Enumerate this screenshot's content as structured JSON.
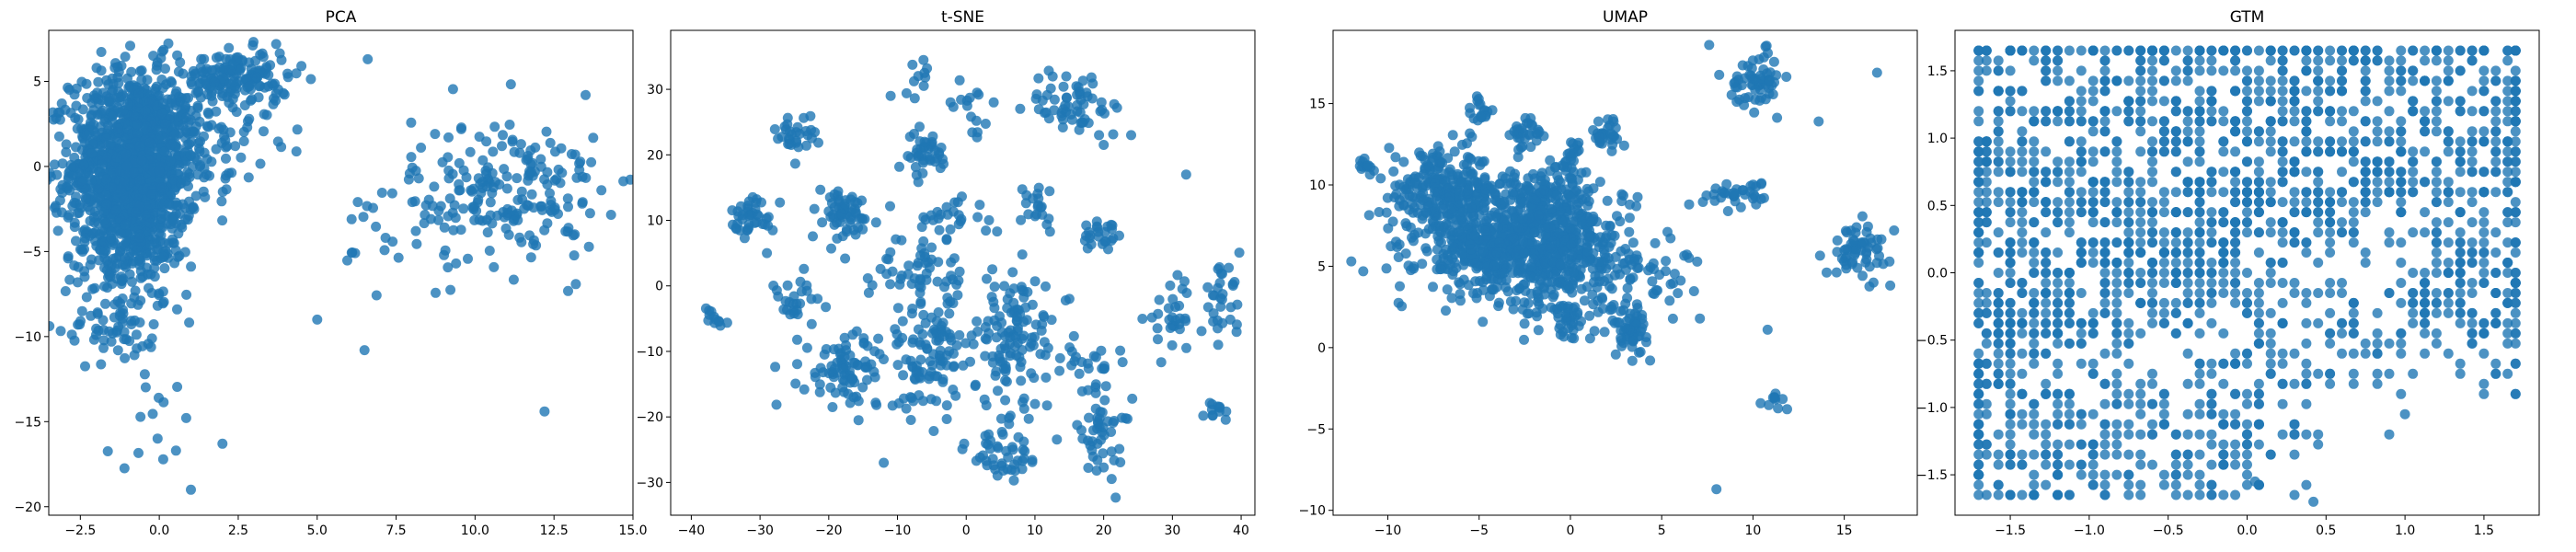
{
  "chart_data": [
    {
      "type": "scatter",
      "title": "PCA",
      "xlabel": "",
      "ylabel": "",
      "xlim": [
        -3.5,
        15
      ],
      "ylim": [
        -20.5,
        8
      ],
      "xticks": [
        -2.5,
        0.0,
        2.5,
        5.0,
        7.5,
        10.0,
        12.5,
        15.0
      ],
      "xtick_labels": [
        "−2.5",
        "0.0",
        "2.5",
        "5.0",
        "7.5",
        "10.0",
        "12.5",
        "15.0"
      ],
      "yticks": [
        -20,
        -15,
        -10,
        -5,
        0,
        5
      ],
      "ytick_labels": [
        "−20",
        "−15",
        "−10",
        "−5",
        "0",
        "5"
      ],
      "clusters": [
        {
          "cx": -0.8,
          "cy": 0.0,
          "sx": 1.0,
          "sy": 2.8,
          "n": 1300
        },
        {
          "cx": -1.2,
          "cy": -5.0,
          "sx": 0.9,
          "sy": 2.0,
          "n": 140
        },
        {
          "cx": -1.3,
          "cy": -9.5,
          "sx": 0.9,
          "sy": 1.2,
          "n": 50
        },
        {
          "cx": 2.5,
          "cy": 5.2,
          "sx": 0.8,
          "sy": 0.8,
          "n": 150
        },
        {
          "cx": 1.3,
          "cy": 2.2,
          "sx": 1.2,
          "sy": 1.5,
          "n": 90
        },
        {
          "cx": 11.0,
          "cy": -1.5,
          "sx": 1.5,
          "sy": 2.2,
          "n": 200
        },
        {
          "cx": 7.5,
          "cy": -3.5,
          "sx": 1.0,
          "sy": 2.0,
          "n": 25
        },
        {
          "cx": 0.0,
          "cy": -15.5,
          "sx": 0.7,
          "sy": 1.5,
          "n": 12
        }
      ],
      "points": [
        {
          "x": 1.0,
          "y": -19.0
        },
        {
          "x": 2.0,
          "y": -16.3
        },
        {
          "x": 6.5,
          "y": -10.8
        },
        {
          "x": 6.6,
          "y": 6.3
        },
        {
          "x": 12.2,
          "y": -14.4
        },
        {
          "x": 13.5,
          "y": 4.2
        },
        {
          "x": 14.0,
          "y": -1.4
        },
        {
          "x": 5.0,
          "y": -9.0
        },
        {
          "x": 4.5,
          "y": 5.9
        }
      ]
    },
    {
      "type": "scatter",
      "title": "t-SNE",
      "xlabel": "",
      "ylabel": "",
      "xlim": [
        -43,
        42
      ],
      "ylim": [
        -35,
        39
      ],
      "xticks": [
        -40,
        -30,
        -20,
        -10,
        0,
        10,
        20,
        30,
        40
      ],
      "xtick_labels": [
        "−40",
        "−30",
        "−20",
        "−10",
        "0",
        "10",
        "20",
        "30",
        "40"
      ],
      "yticks": [
        -30,
        -20,
        -10,
        0,
        10,
        20,
        30
      ],
      "ytick_labels": [
        "−30",
        "−20",
        "−10",
        "0",
        "10",
        "20",
        "30"
      ],
      "clusters": [
        {
          "cx": -25,
          "cy": 23,
          "sx": 1.5,
          "sy": 1.5,
          "n": 30
        },
        {
          "cx": -31,
          "cy": 11,
          "sx": 1.6,
          "sy": 1.5,
          "n": 40
        },
        {
          "cx": -18,
          "cy": 11,
          "sx": 2.5,
          "sy": 2.0,
          "n": 60
        },
        {
          "cx": -6,
          "cy": 20,
          "sx": 1.8,
          "sy": 1.8,
          "n": 40
        },
        {
          "cx": -6,
          "cy": 32,
          "sx": 1.0,
          "sy": 1.5,
          "n": 10
        },
        {
          "cx": 0,
          "cy": 27,
          "sx": 1.5,
          "sy": 2.0,
          "n": 15
        },
        {
          "cx": 16,
          "cy": 28,
          "sx": 3.5,
          "sy": 2.5,
          "n": 60
        },
        {
          "cx": -2,
          "cy": 10,
          "sx": 2.5,
          "sy": 2.0,
          "n": 25
        },
        {
          "cx": 10,
          "cy": 12,
          "sx": 2.0,
          "sy": 2.0,
          "n": 20
        },
        {
          "cx": 20,
          "cy": 8,
          "sx": 1.5,
          "sy": 1.5,
          "n": 25
        },
        {
          "cx": -8,
          "cy": 3,
          "sx": 3.0,
          "sy": 2.5,
          "n": 50
        },
        {
          "cx": -25,
          "cy": -3,
          "sx": 2.0,
          "sy": 2.0,
          "n": 25
        },
        {
          "cx": -37,
          "cy": -5,
          "sx": 1.5,
          "sy": 1.2,
          "n": 12
        },
        {
          "cx": -17,
          "cy": -13,
          "sx": 3.5,
          "sy": 3.0,
          "n": 90
        },
        {
          "cx": -5,
          "cy": -10,
          "sx": 3.5,
          "sy": 5.0,
          "n": 110
        },
        {
          "cx": 7,
          "cy": -8,
          "sx": 4.0,
          "sy": 5.0,
          "n": 120
        },
        {
          "cx": 6,
          "cy": -25,
          "sx": 3.0,
          "sy": 3.0,
          "n": 50
        },
        {
          "cx": 20,
          "cy": -23,
          "sx": 2.0,
          "sy": 3.0,
          "n": 45
        },
        {
          "cx": 18,
          "cy": -12,
          "sx": 2.0,
          "sy": 2.0,
          "n": 20
        },
        {
          "cx": 30,
          "cy": -5,
          "sx": 2.0,
          "sy": 2.5,
          "n": 30
        },
        {
          "cx": 37,
          "cy": -2,
          "sx": 1.5,
          "sy": 2.5,
          "n": 30
        },
        {
          "cx": 37,
          "cy": -19,
          "sx": 1.0,
          "sy": 0.8,
          "n": 12
        }
      ],
      "points": [
        {
          "x": 32,
          "y": 17
        },
        {
          "x": -11,
          "y": 29
        },
        {
          "x": -29,
          "y": 5
        },
        {
          "x": -12,
          "y": -27
        },
        {
          "x": 24,
          "y": 23
        },
        {
          "x": 4,
          "y": 28
        }
      ]
    },
    {
      "type": "scatter",
      "title": "UMAP",
      "xlabel": "",
      "ylabel": "",
      "xlim": [
        -13,
        19
      ],
      "ylim": [
        -10.3,
        19.5
      ],
      "xticks": [
        -10,
        -5,
        0,
        5,
        10,
        15
      ],
      "xtick_labels": [
        "−10",
        "−5",
        "0",
        "5",
        "10",
        "15"
      ],
      "yticks": [
        -10,
        -5,
        0,
        5,
        10,
        15
      ],
      "ytick_labels": [
        "−10",
        "−5",
        "0",
        "5",
        "10",
        "15"
      ],
      "clusters": [
        {
          "cx": -7,
          "cy": 9.5,
          "sx": 1.5,
          "sy": 1.2,
          "n": 250
        },
        {
          "cx": -4,
          "cy": 6,
          "sx": 2.2,
          "sy": 1.4,
          "n": 450
        },
        {
          "cx": 0,
          "cy": 6,
          "sx": 1.8,
          "sy": 2.0,
          "n": 350
        },
        {
          "cx": -2,
          "cy": 9,
          "sx": 1.5,
          "sy": 1.0,
          "n": 150
        },
        {
          "cx": -5,
          "cy": 14.3,
          "sx": 0.3,
          "sy": 0.6,
          "n": 20
        },
        {
          "cx": -2.3,
          "cy": 13,
          "sx": 0.5,
          "sy": 0.6,
          "n": 30
        },
        {
          "cx": 0,
          "cy": 11.5,
          "sx": 0.3,
          "sy": 0.8,
          "n": 25
        },
        {
          "cx": 2,
          "cy": 13.2,
          "sx": 0.5,
          "sy": 0.5,
          "n": 30
        },
        {
          "cx": 3.2,
          "cy": 1.2,
          "sx": 0.5,
          "sy": 0.8,
          "n": 60
        },
        {
          "cx": 0,
          "cy": 1.6,
          "sx": 0.6,
          "sy": 0.5,
          "n": 30
        },
        {
          "cx": 10.2,
          "cy": 16.5,
          "sx": 0.7,
          "sy": 0.8,
          "n": 60
        },
        {
          "cx": 9.5,
          "cy": 9.5,
          "sx": 1.0,
          "sy": 0.4,
          "n": 35
        },
        {
          "cx": 15.8,
          "cy": 6.0,
          "sx": 0.9,
          "sy": 0.8,
          "n": 60
        },
        {
          "cx": 11.3,
          "cy": -3.2,
          "sx": 0.3,
          "sy": 0.3,
          "n": 10
        },
        {
          "cx": -11.3,
          "cy": 11.3,
          "sx": 0.2,
          "sy": 0.2,
          "n": 8
        },
        {
          "cx": 5.5,
          "cy": 4.5,
          "sx": 0.8,
          "sy": 1.0,
          "n": 25
        }
      ],
      "points": [
        {
          "x": -12.0,
          "y": 5.3
        },
        {
          "x": 7.6,
          "y": 18.6
        },
        {
          "x": 8.0,
          "y": -8.7
        },
        {
          "x": 16.8,
          "y": 16.9
        },
        {
          "x": 13.6,
          "y": 13.9
        },
        {
          "x": 10.8,
          "y": 1.1
        },
        {
          "x": 6.5,
          "y": 8.8
        }
      ]
    },
    {
      "type": "scatter",
      "title": "GTM",
      "xlabel": "",
      "ylabel": "",
      "xlim": [
        -1.85,
        1.85
      ],
      "ylim": [
        -1.8,
        1.8
      ],
      "xticks": [
        -1.5,
        -1.0,
        -0.5,
        0.0,
        0.5,
        1.0,
        1.5
      ],
      "xtick_labels": [
        "−1.5",
        "−1.0",
        "−0.5",
        "0.0",
        "0.5",
        "1.0",
        "1.5"
      ],
      "yticks": [
        -1.5,
        -1.0,
        -0.5,
        0.0,
        0.5,
        1.0,
        1.5
      ],
      "ytick_labels": [
        "−1.5",
        "−1.0",
        "−0.5",
        "0.0",
        "0.5",
        "1.0",
        "1.5"
      ],
      "grid_step": 0.075,
      "clusters": [
        {
          "cx": -1.6,
          "cy": 0.2,
          "sx": 0.15,
          "sy": 0.9,
          "n": 150
        },
        {
          "cx": -1.2,
          "cy": 1.0,
          "sx": 0.3,
          "sy": 0.6,
          "n": 160
        },
        {
          "cx": -1.25,
          "cy": -0.3,
          "sx": 0.25,
          "sy": 0.3,
          "n": 120
        },
        {
          "cx": -1.35,
          "cy": -1.3,
          "sx": 0.3,
          "sy": 0.35,
          "n": 120
        },
        {
          "cx": -0.5,
          "cy": 1.3,
          "sx": 0.45,
          "sy": 0.35,
          "n": 180
        },
        {
          "cx": 0.3,
          "cy": 1.35,
          "sx": 0.45,
          "sy": 0.3,
          "n": 160
        },
        {
          "cx": 1.2,
          "cy": 1.3,
          "sx": 0.4,
          "sy": 0.35,
          "n": 140
        },
        {
          "cx": 0.9,
          "cy": 0.65,
          "sx": 0.4,
          "sy": 0.2,
          "n": 120
        },
        {
          "cx": -0.3,
          "cy": 0.2,
          "sx": 0.35,
          "sy": 0.3,
          "n": 130
        },
        {
          "cx": -0.75,
          "cy": -0.1,
          "sx": 0.3,
          "sy": 0.3,
          "n": 100
        },
        {
          "cx": -0.45,
          "cy": -1.2,
          "sx": 0.35,
          "sy": 0.35,
          "n": 130
        },
        {
          "cx": 0.1,
          "cy": -0.8,
          "sx": 0.25,
          "sy": 0.5,
          "n": 90
        },
        {
          "cx": 0.15,
          "cy": 0.5,
          "sx": 0.3,
          "sy": 0.25,
          "n": 100
        },
        {
          "cx": 1.35,
          "cy": -0.2,
          "sx": 0.25,
          "sy": 0.3,
          "n": 130
        },
        {
          "cx": 0.7,
          "cy": -0.4,
          "sx": 0.3,
          "sy": 0.25,
          "n": 60
        },
        {
          "cx": -0.9,
          "cy": 0.5,
          "sx": 0.3,
          "sy": 0.2,
          "n": 60
        },
        {
          "cx": 1.6,
          "cy": 0.8,
          "sx": 0.15,
          "sy": 0.6,
          "n": 80
        }
      ],
      "points": [
        {
          "x": 0.42,
          "y": -1.7
        },
        {
          "x": 0.9,
          "y": -1.2
        },
        {
          "x": 1.0,
          "y": -1.05
        },
        {
          "x": -1.5,
          "y": -1.65
        },
        {
          "x": 0.05,
          "y": -1.55
        }
      ]
    }
  ]
}
